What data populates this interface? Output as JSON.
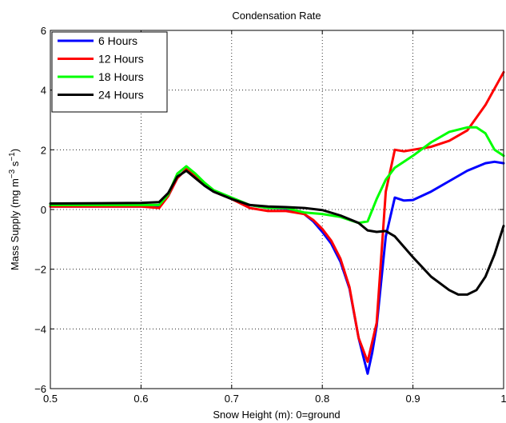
{
  "chart_data": {
    "type": "line",
    "title": "Condensation Rate",
    "xlabel": "Snow Height (m): 0=ground",
    "ylabel": {
      "base": "Mass Supply (mg m",
      "sup1": "−3",
      "mid": " s",
      "sup2": "−1",
      "end": ")"
    },
    "xlim": [
      0.5,
      1.0
    ],
    "ylim": [
      -6,
      6
    ],
    "xticks": [
      0.5,
      0.6,
      0.7,
      0.8,
      0.9,
      1.0
    ],
    "xtick_labels": [
      "0.5",
      "0.6",
      "0.7",
      "0.8",
      "0.9",
      "1"
    ],
    "yticks": [
      -6,
      -4,
      -2,
      0,
      2,
      4,
      6
    ],
    "ytick_labels": [
      "−6",
      "−4",
      "−2",
      "0",
      "2",
      "4",
      "6"
    ],
    "grid": true,
    "legend_position": "top-left",
    "series": [
      {
        "name": "6 Hours",
        "color": "#0000ff",
        "x": [
          0.5,
          0.6,
          0.62,
          0.63,
          0.64,
          0.65,
          0.66,
          0.67,
          0.68,
          0.7,
          0.72,
          0.74,
          0.76,
          0.78,
          0.79,
          0.8,
          0.81,
          0.82,
          0.83,
          0.84,
          0.85,
          0.855,
          0.86,
          0.87,
          0.88,
          0.89,
          0.9,
          0.92,
          0.94,
          0.96,
          0.98,
          0.99,
          1.0
        ],
        "y": [
          0.1,
          0.1,
          0.12,
          0.45,
          1.05,
          1.35,
          1.1,
          0.8,
          0.6,
          0.35,
          0.15,
          0.05,
          0.03,
          -0.15,
          -0.4,
          -0.75,
          -1.15,
          -1.75,
          -2.65,
          -4.3,
          -5.5,
          -4.8,
          -3.9,
          -0.9,
          0.4,
          0.3,
          0.32,
          0.6,
          0.95,
          1.3,
          1.55,
          1.6,
          1.55
        ]
      },
      {
        "name": "12 Hours",
        "color": "#ff0000",
        "x": [
          0.5,
          0.6,
          0.62,
          0.63,
          0.64,
          0.65,
          0.66,
          0.67,
          0.68,
          0.7,
          0.72,
          0.74,
          0.76,
          0.78,
          0.79,
          0.8,
          0.81,
          0.82,
          0.83,
          0.84,
          0.85,
          0.86,
          0.87,
          0.875,
          0.88,
          0.89,
          0.9,
          0.92,
          0.94,
          0.96,
          0.98,
          1.0
        ],
        "y": [
          0.1,
          0.1,
          0.05,
          0.45,
          1.05,
          1.35,
          1.15,
          0.85,
          0.6,
          0.35,
          0.05,
          -0.05,
          -0.05,
          -0.15,
          -0.35,
          -0.65,
          -1.05,
          -1.65,
          -2.6,
          -4.3,
          -5.1,
          -3.8,
          0.6,
          1.3,
          2.0,
          1.95,
          2.0,
          2.1,
          2.3,
          2.65,
          3.5,
          4.6
        ]
      },
      {
        "name": "18 Hours",
        "color": "#00ff00",
        "x": [
          0.5,
          0.6,
          0.62,
          0.63,
          0.64,
          0.65,
          0.66,
          0.67,
          0.68,
          0.7,
          0.72,
          0.74,
          0.76,
          0.78,
          0.8,
          0.82,
          0.84,
          0.85,
          0.86,
          0.87,
          0.88,
          0.9,
          0.92,
          0.94,
          0.96,
          0.97,
          0.98,
          0.99,
          1.0
        ],
        "y": [
          0.15,
          0.15,
          0.15,
          0.5,
          1.2,
          1.45,
          1.2,
          0.9,
          0.65,
          0.4,
          0.15,
          0.05,
          0.05,
          -0.1,
          -0.15,
          -0.25,
          -0.45,
          -0.4,
          0.35,
          1.0,
          1.4,
          1.8,
          2.25,
          2.6,
          2.75,
          2.75,
          2.55,
          2.0,
          1.8
        ]
      },
      {
        "name": "24 Hours",
        "color": "#000000",
        "x": [
          0.5,
          0.6,
          0.62,
          0.63,
          0.64,
          0.65,
          0.66,
          0.67,
          0.68,
          0.7,
          0.72,
          0.74,
          0.76,
          0.78,
          0.8,
          0.82,
          0.84,
          0.85,
          0.86,
          0.87,
          0.88,
          0.9,
          0.92,
          0.94,
          0.95,
          0.96,
          0.97,
          0.98,
          0.99,
          1.0
        ],
        "y": [
          0.2,
          0.22,
          0.25,
          0.55,
          1.1,
          1.3,
          1.05,
          0.8,
          0.6,
          0.35,
          0.15,
          0.1,
          0.08,
          0.05,
          -0.02,
          -0.2,
          -0.45,
          -0.7,
          -0.75,
          -0.72,
          -0.9,
          -1.6,
          -2.25,
          -2.7,
          -2.85,
          -2.85,
          -2.7,
          -2.25,
          -1.5,
          -0.55
        ]
      }
    ]
  }
}
